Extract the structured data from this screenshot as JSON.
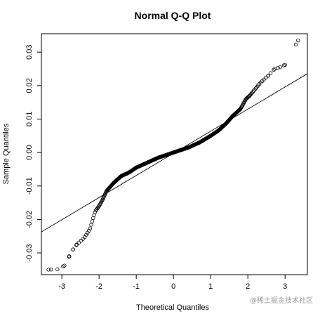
{
  "chart_data": {
    "type": "scatter",
    "title": "Normal Q-Q Plot",
    "xlabel": "Theoretical Quantiles",
    "ylabel": "Sample Quantiles",
    "xlim": [
      -3.55,
      3.6
    ],
    "ylim": [
      -0.0365,
      0.0355
    ],
    "x_ticks": [
      -3,
      -2,
      -1,
      0,
      1,
      2,
      3
    ],
    "y_ticks": [
      -0.03,
      -0.02,
      -0.01,
      0.0,
      0.01,
      0.02,
      0.03
    ],
    "x_tick_labels": [
      "-3",
      "-2",
      "-1",
      "0",
      "1",
      "2",
      "3"
    ],
    "y_tick_labels": [
      "-0.03",
      "-0.02",
      "-0.01",
      "0.00",
      "0.01",
      "0.02",
      "0.03"
    ],
    "grid": false,
    "marker": "open-circle",
    "reference_line": {
      "slope": 0.00661,
      "intercept": -0.00025
    },
    "anchor_points": [
      [
        -3.36,
        -0.035
      ],
      [
        -3.12,
        -0.0349
      ],
      [
        -2.93,
        -0.0338
      ],
      [
        -2.8,
        -0.031
      ],
      [
        -2.7,
        -0.029
      ],
      [
        -2.6,
        -0.0275
      ],
      [
        -2.5,
        -0.0265
      ],
      [
        -2.4,
        -0.0255
      ],
      [
        -2.25,
        -0.023
      ],
      [
        -2.1,
        -0.0175
      ],
      [
        -2.0,
        -0.016
      ],
      [
        -1.9,
        -0.014
      ],
      [
        -1.8,
        -0.0115
      ],
      [
        -1.6,
        -0.009
      ],
      [
        -1.4,
        -0.007
      ],
      [
        -1.2,
        -0.006
      ],
      [
        -1.0,
        -0.0045
      ],
      [
        -0.7,
        -0.003
      ],
      [
        -0.4,
        -0.0015
      ],
      [
        0.0,
        0.0
      ],
      [
        0.4,
        0.0015
      ],
      [
        0.7,
        0.003
      ],
      [
        1.0,
        0.005
      ],
      [
        1.2,
        0.0065
      ],
      [
        1.4,
        0.0085
      ],
      [
        1.6,
        0.011
      ],
      [
        1.8,
        0.013
      ],
      [
        1.95,
        0.016
      ],
      [
        2.05,
        0.017
      ],
      [
        2.2,
        0.019
      ],
      [
        2.35,
        0.021
      ],
      [
        2.55,
        0.023
      ],
      [
        2.72,
        0.025
      ],
      [
        2.87,
        0.0255
      ],
      [
        3.0,
        0.0262
      ],
      [
        3.35,
        0.0335
      ]
    ]
  },
  "watermark": {
    "text": "@稀土掘金技术社区"
  }
}
